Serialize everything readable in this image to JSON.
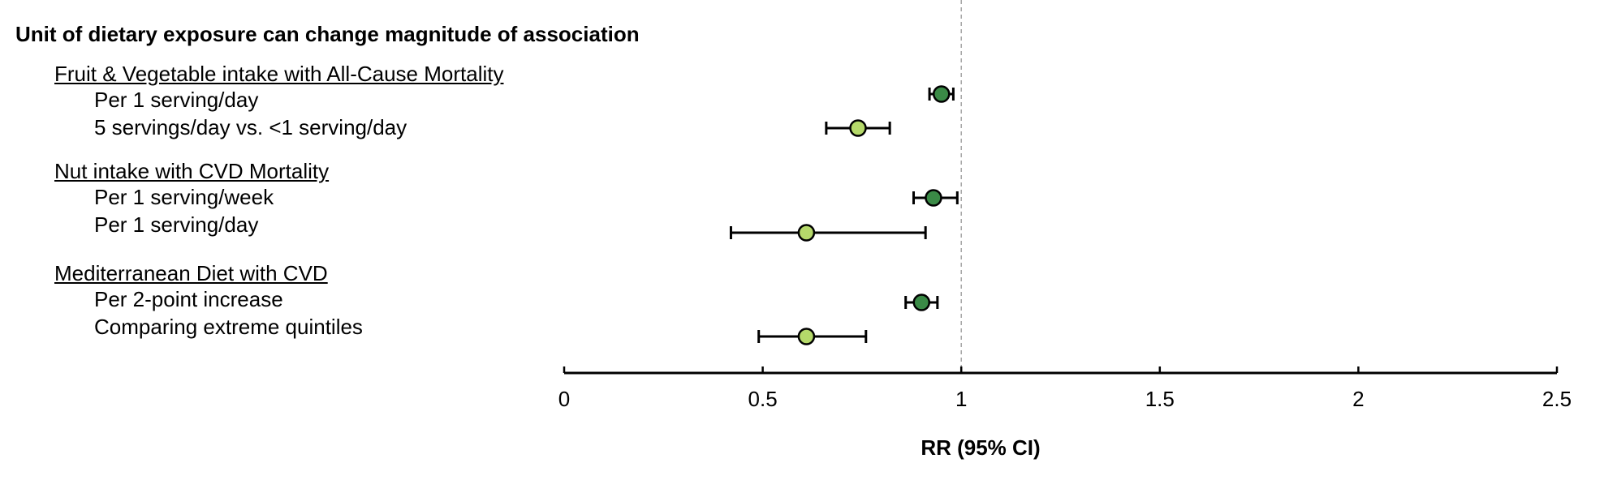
{
  "chart_data": {
    "type": "scatter",
    "subtype": "forest-plot",
    "section_title": "Unit of dietary exposure can change magnitude of association",
    "xlabel": "RR (95% CI)",
    "xlim": [
      0,
      2.5
    ],
    "xticks": [
      "0",
      "0.5",
      "1",
      "1.5",
      "2",
      "2.5"
    ],
    "reference_line": 1,
    "colors": {
      "per_unit": "#3a8a46",
      "comparison": "#b5d96a",
      "edge": "#000000",
      "refline": "#999999"
    },
    "groups": [
      {
        "label": "Fruit & Vegetable intake with All-Cause Mortality",
        "rows": [
          {
            "label": "Per 1 serving/day",
            "rr": 0.95,
            "lo": 0.92,
            "hi": 0.98,
            "style": "per_unit"
          },
          {
            "label": "5 servings/day vs. <1 serving/day",
            "rr": 0.74,
            "lo": 0.66,
            "hi": 0.82,
            "style": "comparison"
          }
        ]
      },
      {
        "label": "Nut intake with CVD Mortality",
        "rows": [
          {
            "label": "Per 1 serving/week",
            "rr": 0.93,
            "lo": 0.88,
            "hi": 0.99,
            "style": "per_unit"
          },
          {
            "label": "Per 1 serving/day",
            "rr": 0.61,
            "lo": 0.42,
            "hi": 0.91,
            "style": "comparison"
          }
        ]
      },
      {
        "label": "Mediterranean Diet with CVD",
        "rows": [
          {
            "label": "Per 2-point increase",
            "rr": 0.9,
            "lo": 0.86,
            "hi": 0.94,
            "style": "per_unit"
          },
          {
            "label": "Comparing extreme quintiles",
            "rr": 0.61,
            "lo": 0.49,
            "hi": 0.76,
            "style": "comparison"
          }
        ]
      }
    ]
  }
}
